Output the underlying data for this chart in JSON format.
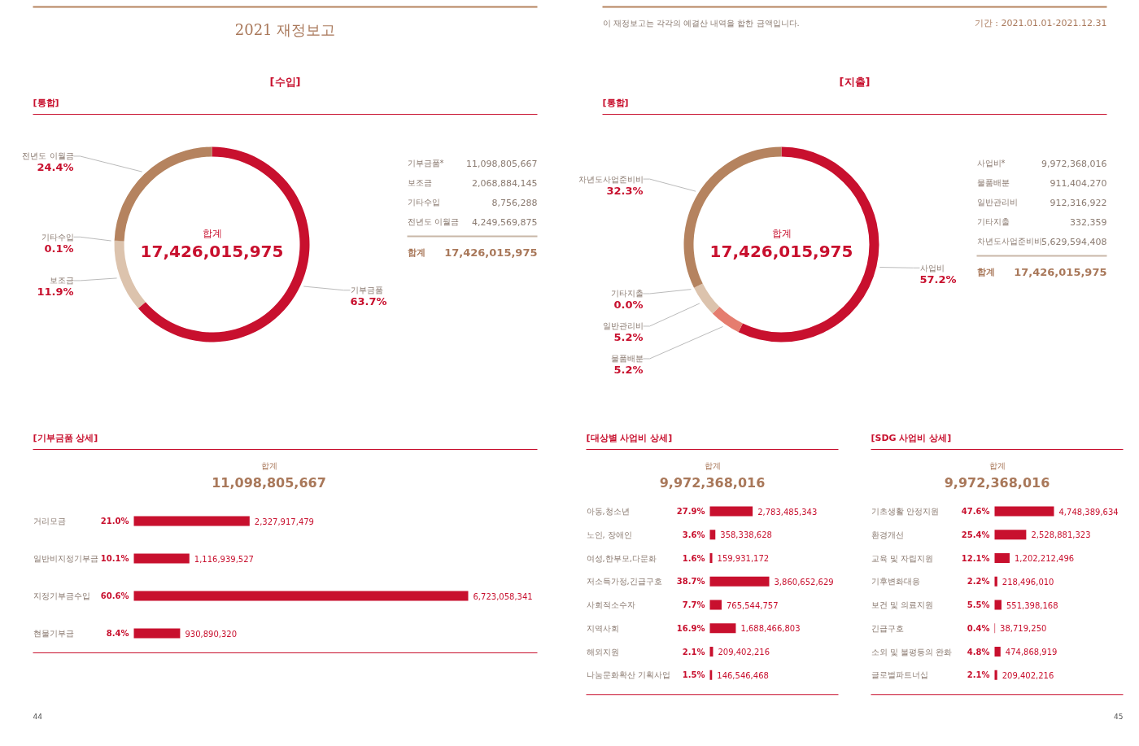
{
  "chart_data": [
    {
      "type": "donut",
      "title": "[수입]",
      "subtitle": "[통합]",
      "categories": [
        "기부금품",
        "보조금",
        "기타수입",
        "전년도 이월금"
      ],
      "values": [
        63.7,
        11.9,
        0.1,
        24.4
      ],
      "colors": [
        "#c8102e",
        "#dcc3ad",
        "#c9a88c",
        "#b5835f"
      ],
      "value_labels": [
        "63.7%",
        "11.9%",
        "0.1%",
        "24.4%"
      ],
      "annotations": [
        "2021 재정보고",
        "합계",
        "17,426,015,975",
        "기부금품*",
        "11,098,805,667",
        "보조금",
        "2,068,884,145",
        "기타수입",
        "8,756,288",
        "전년도 이월금",
        "4,249,569,875",
        "합계",
        "17,426,015,975"
      ]
    },
    {
      "type": "bar",
      "orientation": "horizontal",
      "title": "[기부금품 상세]",
      "categories": [
        "거리모금",
        "일반비지정기부금",
        "지정기부금수입",
        "현물기부금"
      ],
      "values": [
        2327917479,
        1116939527,
        6723058341,
        930890320
      ],
      "value_labels": [
        "2,327,917,479",
        "1,116,939,527",
        "6,723,058,341",
        "930,890,320"
      ],
      "color": "#c8102e",
      "tick_labels": false,
      "annotations": [
        "합계",
        "11,098,805,667",
        "21.0%",
        "10.1%",
        "60.6%",
        "8.4%",
        "44"
      ]
    },
    {
      "type": "donut",
      "title": "[지출]",
      "subtitle": "[통합]",
      "categories": [
        "사업비",
        "물품배분",
        "일반관리비",
        "기타지출",
        "차년도사업준비비"
      ],
      "values": [
        57.2,
        5.2,
        5.2,
        0.0,
        32.3
      ],
      "colors": [
        "#c8102e",
        "#e57d6f",
        "#dcc3ad",
        "#c9a88c",
        "#b5835f"
      ],
      "value_labels": [
        "57.2%",
        "5.2%",
        "5.2%",
        "0.0%",
        "32.3%"
      ],
      "annotations": [
        "기간 : 2021.01.01-2021.12.31",
        "이 재정보고는 각각의 예결산 내역을 합한 금액입니다.",
        "합계",
        "17,426,015,975",
        "사업비*",
        "9,972,368,016",
        "물품배분",
        "911,404,270",
        "일반관리비",
        "912,316,922",
        "기타지출",
        "332,359",
        "차년도사업준비비",
        "5,629,594,408",
        "합계",
        "17,426,015,975"
      ]
    },
    {
      "type": "bar",
      "orientation": "horizontal",
      "title": "[대상별 사업비 상세]",
      "categories": [
        "아동,청소년",
        "노인, 장애인",
        "여성,한부모,다문화",
        "저소득가정,긴급구호",
        "사회적소수자",
        "지역사회",
        "해외지원",
        "나눔문화확산 기획사업"
      ],
      "values": [
        2783485343,
        358338628,
        159931172,
        3860652629,
        765544757,
        1688466803,
        209402216,
        146546468
      ],
      "value_labels": [
        "2,783,485,343",
        "358,338,628",
        "159,931,172",
        "3,860,652,629",
        "765,544,757",
        "1,688,466,803",
        "209,402,216",
        "146,546,468"
      ],
      "color": "#c8102e",
      "tick_labels": false,
      "annotations": [
        "합계",
        "9,972,368,016",
        "27.9%",
        "3.6%",
        "1.6%",
        "38.7%",
        "7.7%",
        "16.9%",
        "2.1%",
        "1.5%"
      ]
    },
    {
      "type": "bar",
      "orientation": "horizontal",
      "title": "[SDG 사업비 상세]",
      "categories": [
        "기초생활 안정지원",
        "환경개선",
        "교육 및 자립지원",
        "기후변화대응",
        "보건 및 의료지원",
        "긴급구호",
        "소외 및 불평등의 완화",
        "글로벌파트너십"
      ],
      "values": [
        4748389634,
        2528881323,
        1202212496,
        218496010,
        551398168,
        38719250,
        474868919,
        209402216
      ],
      "value_labels": [
        "4,748,389,634",
        "2,528,881,323",
        "1,202,212,496",
        "218,496,010",
        "551,398,168",
        "38,719,250",
        "474,868,919",
        "209,402,216"
      ],
      "color": "#c8102e",
      "tick_labels": false,
      "annotations": [
        "합계",
        "9,972,368,016",
        "47.6%",
        "25.4%",
        "12.1%",
        "2.2%",
        "5.5%",
        "0.4%",
        "4.8%",
        "2.1%",
        "45"
      ]
    }
  ]
}
